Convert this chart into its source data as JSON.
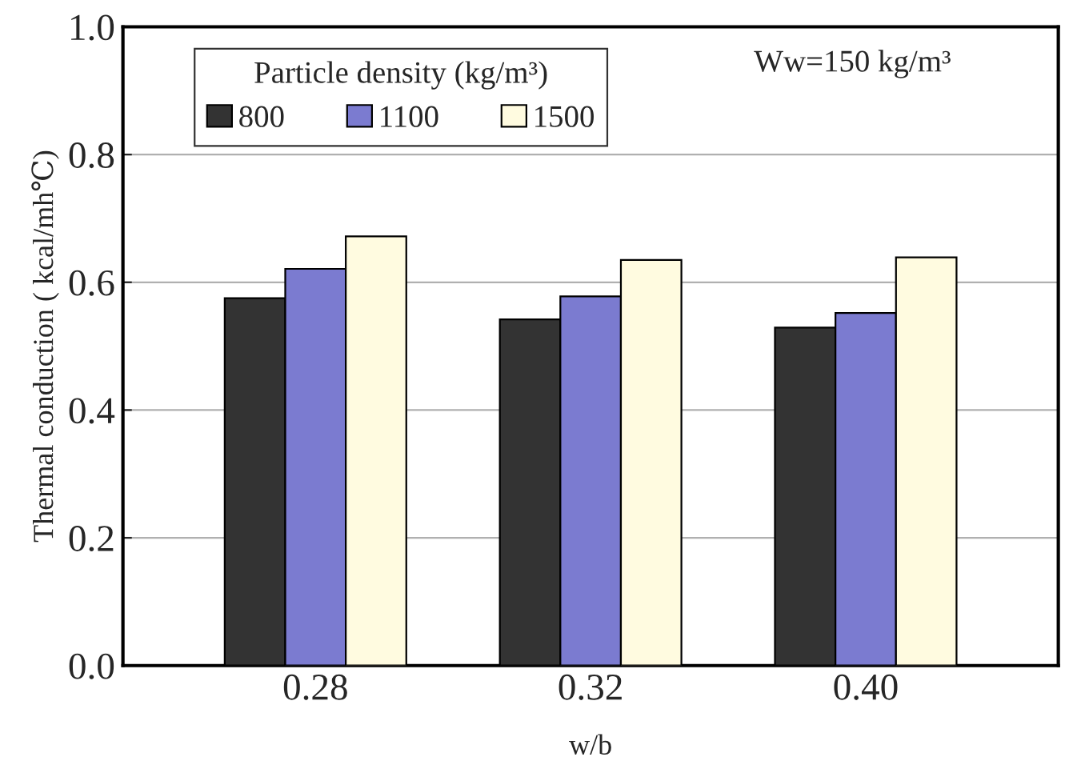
{
  "chart_data": {
    "type": "bar",
    "xlabel": "w/b",
    "ylabel": "Thermal conduction ( kcal/mh℃)",
    "legend_title": "Particle density (kg/m³)",
    "annotations": [
      "Ww=150 kg/m³"
    ],
    "categories": [
      "0.28",
      "0.32",
      "0.40"
    ],
    "series": [
      {
        "name": "800",
        "color": "#333333",
        "values": [
          0.575,
          0.542,
          0.529
        ]
      },
      {
        "name": "1100",
        "color": "#7b7bd0",
        "values": [
          0.621,
          0.578,
          0.552
        ]
      },
      {
        "name": "1500",
        "color": "#fffbe0",
        "values": [
          0.672,
          0.635,
          0.639
        ]
      }
    ],
    "ylim": [
      0,
      1.0
    ],
    "yticks": [
      {
        "value": 0,
        "label": "0.0"
      },
      0.2,
      0.4,
      0.6,
      0.8,
      {
        "value": 1.0,
        "label": "1.0"
      }
    ],
    "grid": "y",
    "legend": "top left"
  }
}
